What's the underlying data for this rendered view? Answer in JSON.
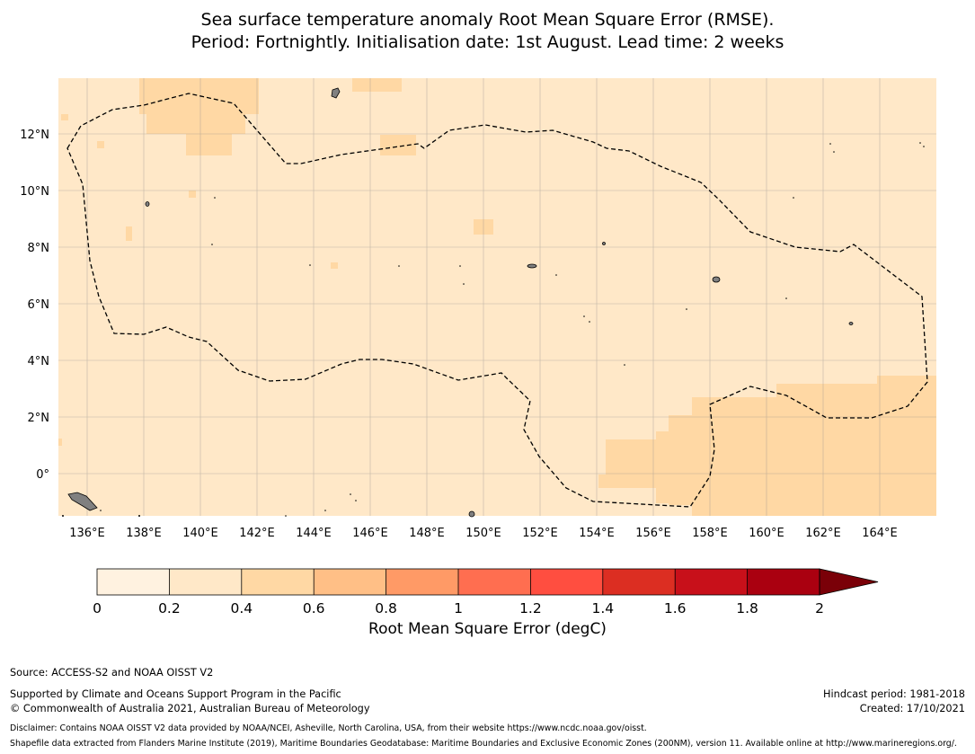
{
  "title": {
    "line1": "Sea surface temperature anomaly Root Mean Square Error (RMSE).",
    "line2": "Period: Fortnightly. Initialisation date: 1st August. Lead time: 2 weeks"
  },
  "map": {
    "lon_ticks": [
      "136°E",
      "138°E",
      "140°E",
      "142°E",
      "144°E",
      "146°E",
      "148°E",
      "150°E",
      "152°E",
      "154°E",
      "156°E",
      "158°E",
      "160°E",
      "162°E",
      "164°E"
    ],
    "lat_ticks": [
      "12°N",
      "10°N",
      "8°N",
      "6°N",
      "4°N",
      "2°N",
      "0°"
    ],
    "lon_range": [
      135,
      166
    ],
    "lat_range": [
      -1.5,
      14
    ],
    "background_color": "#ffe8c8",
    "higher_band_color": "#ffd8a4",
    "land_color": "#808080",
    "boundary_style": "dashed"
  },
  "colorbar": {
    "title": "Root Mean Square Error (degC)",
    "tick_labels": [
      "0",
      "0.2",
      "0.4",
      "0.6",
      "0.8",
      "1",
      "1.2",
      "1.4",
      "1.6",
      "1.8",
      "2"
    ],
    "colors": [
      "#fff2e0",
      "#ffe8c8",
      "#ffd8a4",
      "#ffbf86",
      "#ff9a66",
      "#ff6e50",
      "#ff4e40",
      "#dc2e22",
      "#c8101a",
      "#aa0010"
    ],
    "extend_color": "#7a0008"
  },
  "footer": {
    "source": "Source: ACCESS-S2 and NOAA OISST V2",
    "supported": "Supported by Climate and Oceans Support Program in the Pacific",
    "copyright": "© Commonwealth of Australia 2021, Australian Bureau of Meteorology",
    "hindcast": "Hindcast period: 1981-2018",
    "created": "Created: 17/10/2021",
    "disclaimer": "Disclaimer: Contains NOAA OISST V2 data provided by NOAA/NCEI, Asheville, North Carolina, USA, from their website https://www.ncdc.noaa.gov/oisst.",
    "shapefile": "Shapefile data extracted from Flanders Marine Institute (2019), Maritime Boundaries Geodatabase: Maritime Boundaries and Exclusive Economic Zones (200NM), version 11. Available online at http://www.marineregions.org/."
  }
}
